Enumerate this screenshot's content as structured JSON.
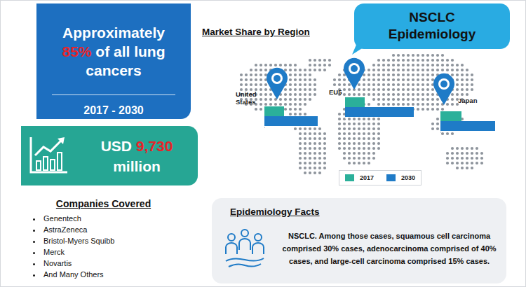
{
  "header": {
    "title_lines": [
      "NSCLC",
      "Epidemiology"
    ]
  },
  "highlights": {
    "share": {
      "prefix": "Approximately",
      "value_text": "85%",
      "suffix": "of all lung cancers"
    },
    "period": "2017 - 2030",
    "market_size": {
      "currency": "USD",
      "value_text": "9,730",
      "unit": "million"
    }
  },
  "companies": {
    "title": "Companies Covered",
    "items": [
      "Genentech",
      "AstraZeneca",
      "Bristol-Myers Squibb",
      "Merck",
      "Novartis",
      "And Many Others"
    ]
  },
  "epidemiology_facts": {
    "title": "Epidemiology Facts",
    "text_lines": [
      "NSCLC. Among those cases, squamous cell carcinoma",
      "comprised 30% cases, adenocarcinoma comprised of 40%",
      "cases, and large-cell carcinoma comprised 15% cases."
    ]
  },
  "chart_data": {
    "type": "bar",
    "title": "Market Share by Region",
    "orientation": "horizontal",
    "categories": [
      "United States",
      "EU5",
      "Japan"
    ],
    "series": [
      {
        "name": "2017",
        "color": "#2bb09a",
        "values": [
          28,
          28,
          30
        ]
      },
      {
        "name": "2030",
        "color": "#1f7bc7",
        "values": [
          76,
          98,
          78
        ]
      }
    ],
    "xlim": [
      0,
      100
    ],
    "xticks": [
      0,
      100
    ],
    "tick_labels": false,
    "grid": false,
    "legend": "bottom"
  }
}
